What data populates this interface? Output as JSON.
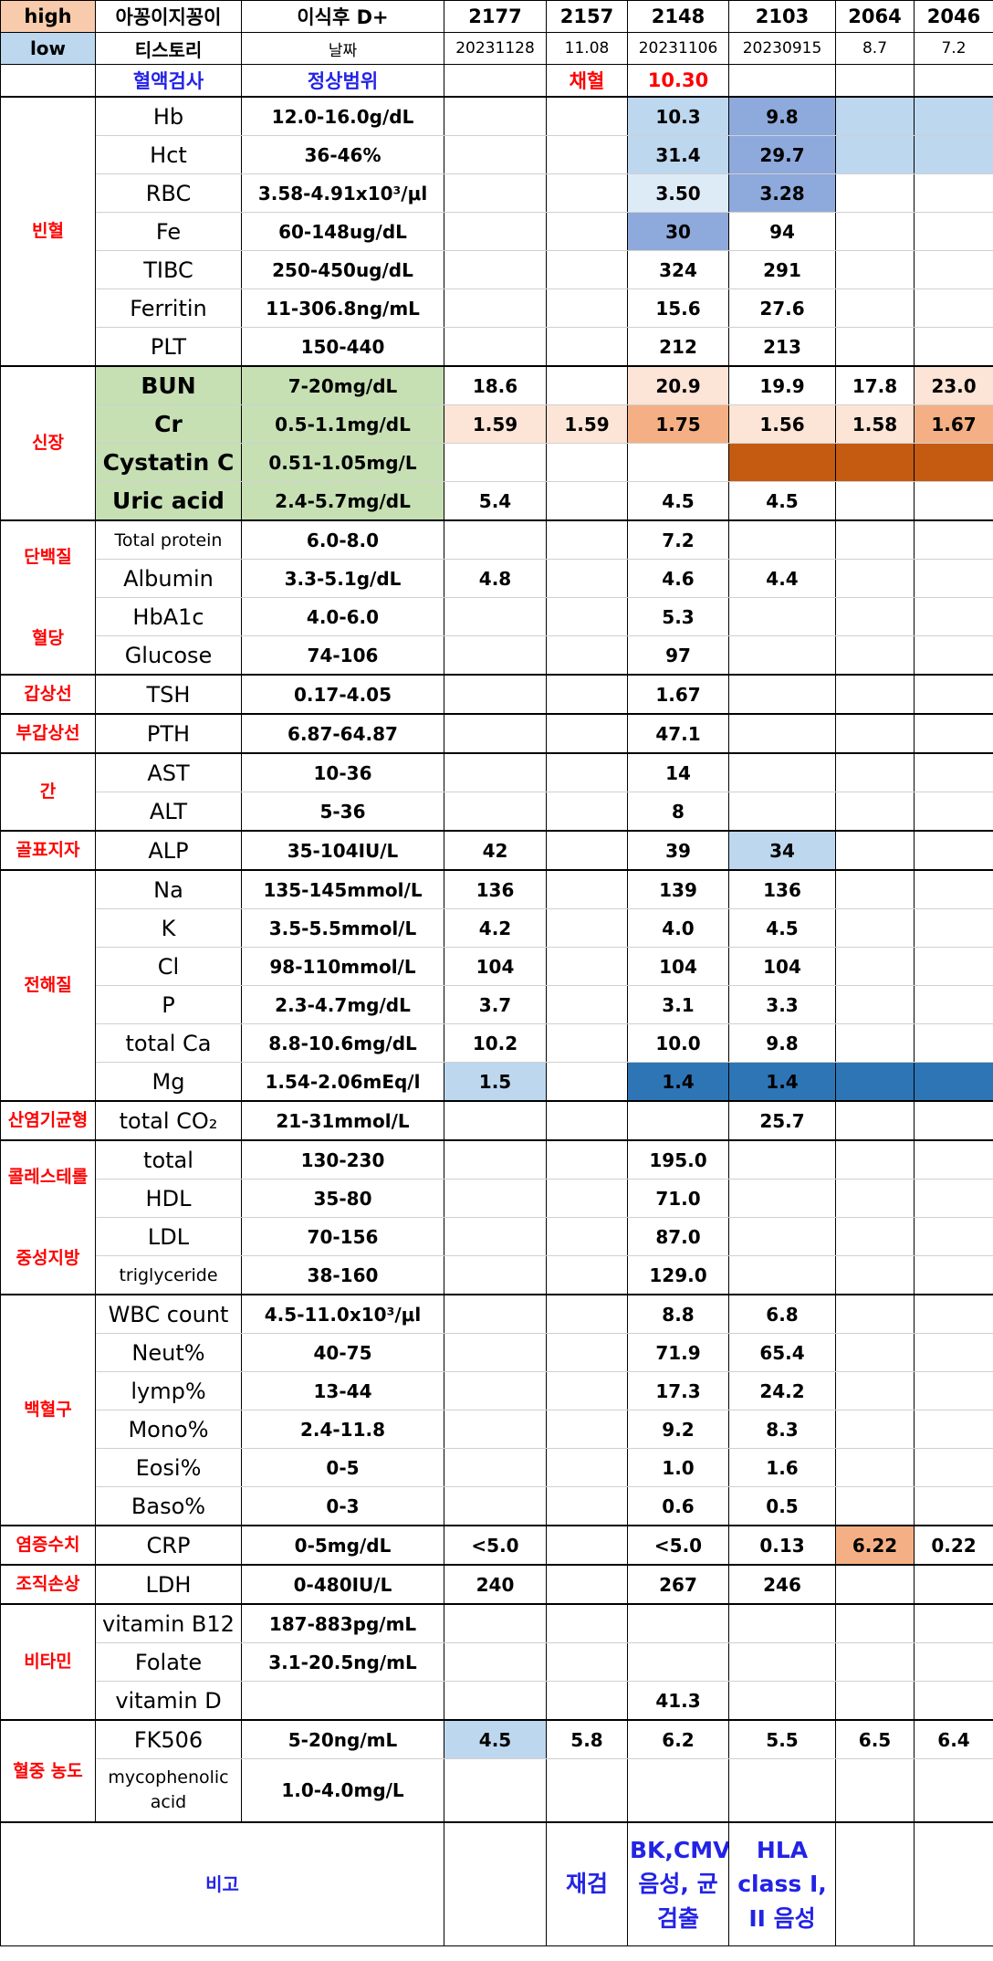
{
  "header": {
    "rows": [
      [
        "high",
        "아꽁이지꽁이",
        "이식후 D+",
        "2177",
        "2157",
        "2148",
        "2103",
        "2064",
        "2046"
      ],
      [
        "low",
        "티스토리",
        "날짜",
        "20231128",
        "11.08",
        "20231106",
        "20230915",
        "8.7",
        "7.2"
      ],
      [
        null,
        "혈액검사",
        "정상범위",
        null,
        "채혈",
        "10.30",
        null,
        null,
        null
      ]
    ]
  },
  "groups": [
    {
      "labels": [
        "빈혈"
      ],
      "rows": [
        {
          "test": "Hb",
          "range": "12.0-16.0g/dL",
          "values": [
            null,
            null,
            "10.3",
            "9.8",
            null,
            null
          ],
          "fills": [
            null,
            null,
            "#bdd7ee",
            "#8ea9db",
            "#bdd7ee",
            "#bdd7ee"
          ]
        },
        {
          "test": "Hct",
          "range": "36-46%",
          "values": [
            null,
            null,
            "31.4",
            "29.7",
            null,
            null
          ],
          "fills": [
            null,
            null,
            "#bdd7ee",
            "#8ea9db",
            "#bdd7ee",
            "#bdd7ee"
          ]
        },
        {
          "test": "RBC",
          "range": "3.58-4.91x10³/μl",
          "values": [
            null,
            null,
            "3.50",
            "3.28",
            null,
            null
          ],
          "fills": [
            null,
            null,
            "#ddebf7",
            "#8ea9db",
            null,
            null
          ]
        },
        {
          "test": "Fe",
          "range": "60-148ug/dL",
          "values": [
            null,
            null,
            "30",
            "94",
            null,
            null
          ],
          "fills": [
            null,
            null,
            "#8ea9db",
            null,
            null,
            null
          ]
        },
        {
          "test": "TIBC",
          "range": "250-450ug/dL",
          "values": [
            null,
            null,
            "324",
            "291",
            null,
            null
          ]
        },
        {
          "test": "Ferritin",
          "range": "11-306.8ng/mL",
          "values": [
            null,
            null,
            "15.6",
            "27.6",
            null,
            null
          ]
        },
        {
          "test": "PLT",
          "range": "150-440",
          "values": [
            null,
            null,
            "212",
            "213",
            null,
            null
          ]
        }
      ]
    },
    {
      "labels": [
        "신장"
      ],
      "test_fill": "#c6e0b4",
      "rows": [
        {
          "test": "BUN",
          "range": "7-20mg/dL",
          "values": [
            "18.6",
            null,
            "20.9",
            "19.9",
            "17.8",
            "23.0"
          ],
          "fills": [
            null,
            null,
            "#fce4d6",
            null,
            null,
            "#fce4d6"
          ]
        },
        {
          "test": "Cr",
          "range": "0.5-1.1mg/dL",
          "values": [
            "1.59",
            "1.59",
            "1.75",
            "1.56",
            "1.58",
            "1.67"
          ],
          "fills": [
            "#fce4d6",
            "#fce4d6",
            "#f4b084",
            "#fce4d6",
            "#fce4d6",
            "#f4b084"
          ]
        },
        {
          "test": "Cystatin C",
          "range": "0.51-1.05mg/L",
          "values": [
            null,
            null,
            null,
            null,
            null,
            null
          ],
          "fills": [
            null,
            null,
            null,
            "#c55a11",
            "#c55a11",
            "#c55a11"
          ]
        },
        {
          "test": "Uric acid",
          "range": "2.4-5.7mg/dL",
          "values": [
            "5.4",
            null,
            "4.5",
            "4.5",
            null,
            null
          ]
        }
      ]
    },
    {
      "labels": [
        "단백질",
        "혈당"
      ],
      "rows": [
        {
          "test": "Total protein",
          "range": "6.0-8.0",
          "values": [
            null,
            null,
            "7.2",
            null,
            null,
            null
          ]
        },
        {
          "test": "Albumin",
          "range": "3.3-5.1g/dL",
          "values": [
            "4.8",
            null,
            "4.6",
            "4.4",
            null,
            null
          ]
        },
        {
          "test": "HbA1c",
          "range": "4.0-6.0",
          "values": [
            null,
            null,
            "5.3",
            null,
            null,
            null
          ]
        },
        {
          "test": "Glucose",
          "range": "74-106",
          "values": [
            null,
            null,
            "97",
            null,
            null,
            null
          ]
        }
      ]
    },
    {
      "labels": [
        "갑상선"
      ],
      "rows": [
        {
          "test": "TSH",
          "range": "0.17-4.05",
          "values": [
            null,
            null,
            "1.67",
            null,
            null,
            null
          ]
        }
      ]
    },
    {
      "labels": [
        "부갑상선"
      ],
      "rows": [
        {
          "test": "PTH",
          "range": "6.87-64.87",
          "values": [
            null,
            null,
            "47.1",
            null,
            null,
            null
          ]
        }
      ]
    },
    {
      "labels": [
        "간"
      ],
      "rows": [
        {
          "test": "AST",
          "range": "10-36",
          "values": [
            null,
            null,
            "14",
            null,
            null,
            null
          ]
        },
        {
          "test": "ALT",
          "range": "5-36",
          "values": [
            null,
            null,
            "8",
            null,
            null,
            null
          ]
        }
      ]
    },
    {
      "labels": [
        "골표지자"
      ],
      "rows": [
        {
          "test": "ALP",
          "range": "35-104IU/L",
          "values": [
            "42",
            null,
            "39",
            "34",
            null,
            null
          ],
          "fills": [
            null,
            null,
            null,
            "#bdd7ee",
            null,
            null
          ]
        }
      ]
    },
    {
      "labels": [
        "전해질"
      ],
      "rows": [
        {
          "test": "Na",
          "range": "135-145mmol/L",
          "values": [
            "136",
            null,
            "139",
            "136",
            null,
            null
          ]
        },
        {
          "test": "K",
          "range": "3.5-5.5mmol/L",
          "values": [
            "4.2",
            null,
            "4.0",
            "4.5",
            null,
            null
          ]
        },
        {
          "test": "Cl",
          "range": "98-110mmol/L",
          "values": [
            "104",
            null,
            "104",
            "104",
            null,
            null
          ]
        },
        {
          "test": "P",
          "range": "2.3-4.7mg/dL",
          "values": [
            "3.7",
            null,
            "3.1",
            "3.3",
            null,
            null
          ]
        },
        {
          "test": "total Ca",
          "range": "8.8-10.6mg/dL",
          "values": [
            "10.2",
            null,
            "10.0",
            "9.8",
            null,
            null
          ]
        },
        {
          "test": "Mg",
          "range": "1.54-2.06mEq/l",
          "values": [
            "1.5",
            null,
            "1.4",
            "1.4",
            null,
            null
          ],
          "fills": [
            "#bdd7ee",
            null,
            "#2e75b6",
            "#2e75b6",
            "#2e75b6",
            "#2e75b6"
          ]
        }
      ]
    },
    {
      "labels": [
        "산염기균형"
      ],
      "rows": [
        {
          "test": "total CO₂",
          "range": "21-31mmol/L",
          "values": [
            null,
            null,
            null,
            "25.7",
            null,
            null
          ]
        }
      ]
    },
    {
      "labels": [
        "콜레스테롤",
        "중성지방"
      ],
      "rows": [
        {
          "test": "total",
          "range": "130-230",
          "values": [
            null,
            null,
            "195.0",
            null,
            null,
            null
          ]
        },
        {
          "test": "HDL",
          "range": "35-80",
          "values": [
            null,
            null,
            "71.0",
            null,
            null,
            null
          ]
        },
        {
          "test": "LDL",
          "range": "70-156",
          "values": [
            null,
            null,
            "87.0",
            null,
            null,
            null
          ]
        },
        {
          "test": "triglyceride",
          "range": "38-160",
          "values": [
            null,
            null,
            "129.0",
            null,
            null,
            null
          ]
        }
      ]
    },
    {
      "labels": [
        "백혈구"
      ],
      "rows": [
        {
          "test": "WBC count",
          "range": "4.5-11.0x10³/μl",
          "values": [
            null,
            null,
            "8.8",
            "6.8",
            null,
            null
          ]
        },
        {
          "test": "Neut%",
          "range": "40-75",
          "values": [
            null,
            null,
            "71.9",
            "65.4",
            null,
            null
          ]
        },
        {
          "test": "lymp%",
          "range": "13-44",
          "values": [
            null,
            null,
            "17.3",
            "24.2",
            null,
            null
          ]
        },
        {
          "test": "Mono%",
          "range": "2.4-11.8",
          "values": [
            null,
            null,
            "9.2",
            "8.3",
            null,
            null
          ]
        },
        {
          "test": "Eosi%",
          "range": "0-5",
          "values": [
            null,
            null,
            "1.0",
            "1.6",
            null,
            null
          ]
        },
        {
          "test": "Baso%",
          "range": "0-3",
          "values": [
            null,
            null,
            "0.6",
            "0.5",
            null,
            null
          ]
        }
      ]
    },
    {
      "labels": [
        "염증수치"
      ],
      "rows": [
        {
          "test": "CRP",
          "range": "0-5mg/dL",
          "values": [
            "<5.0",
            null,
            "<5.0",
            "0.13",
            "6.22",
            "0.22"
          ],
          "fills": [
            null,
            null,
            null,
            null,
            "#f4b084",
            null
          ]
        }
      ]
    },
    {
      "labels": [
        "조직손상"
      ],
      "rows": [
        {
          "test": "LDH",
          "range": "0-480IU/L",
          "values": [
            "240",
            null,
            "267",
            "246",
            null,
            null
          ]
        }
      ]
    },
    {
      "labels": [
        "비타민"
      ],
      "rows": [
        {
          "test": "vitamin B12",
          "range": "187-883pg/mL",
          "values": [
            null,
            null,
            null,
            null,
            null,
            null
          ]
        },
        {
          "test": "Folate",
          "range": "3.1-20.5ng/mL",
          "values": [
            null,
            null,
            null,
            null,
            null,
            null
          ]
        },
        {
          "test": "vitamin D",
          "range": null,
          "values": [
            null,
            null,
            "41.3",
            null,
            null,
            null
          ]
        }
      ]
    },
    {
      "labels": [
        "혈중 농도"
      ],
      "rows": [
        {
          "test": "FK506",
          "range": "5-20ng/mL",
          "values": [
            "4.5",
            "5.8",
            "6.2",
            "5.5",
            "6.5",
            "6.4"
          ],
          "fills": [
            "#bdd7ee",
            null,
            null,
            null,
            null,
            null
          ]
        },
        {
          "test": "mycophenolic acid",
          "range": "1.0-4.0mg/L",
          "values": [
            null,
            null,
            null,
            null,
            null,
            null
          ]
        }
      ]
    }
  ],
  "note": {
    "label": "비고",
    "values": [
      null,
      "재검",
      "BK,CMV 음성, 균 검출",
      "HLA class I, II 음성",
      null,
      null
    ]
  }
}
